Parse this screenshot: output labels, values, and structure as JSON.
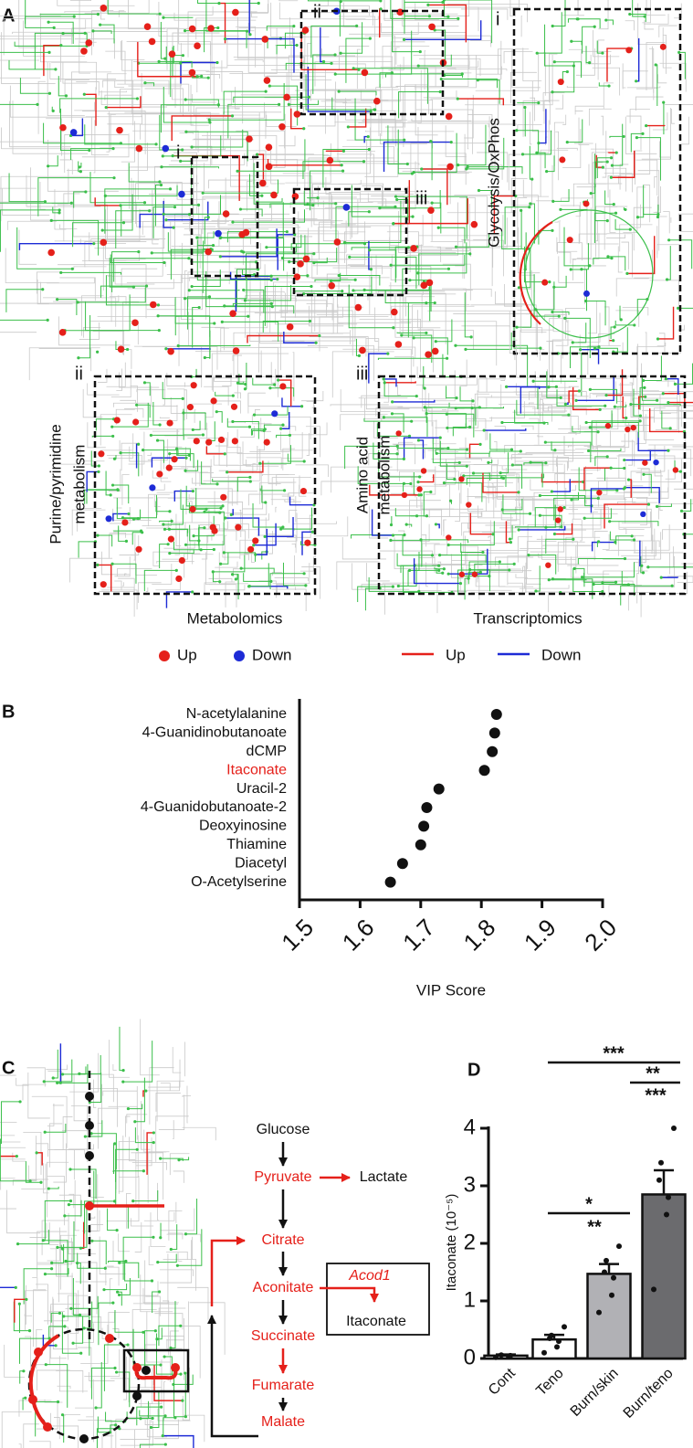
{
  "panels": {
    "a": "A",
    "b": "B",
    "c": "C",
    "d": "D"
  },
  "panel_a": {
    "insets": [
      "i",
      "ii",
      "iii"
    ],
    "inset_titles": [
      [
        "Glycolysis/OxPhos"
      ],
      [
        "Purine/pyrimidine",
        "metabolism"
      ],
      [
        "Amino acid",
        "metabolism"
      ]
    ],
    "columns": [
      "Metabolomics",
      "Transcriptomics"
    ],
    "legend": [
      {
        "name": "Up",
        "color": "#e5201a",
        "shape": "dot"
      },
      {
        "name": "Down",
        "color": "#1d2bd6",
        "shape": "dot"
      },
      {
        "name": "Up",
        "color": "#e5201a",
        "shape": "line"
      },
      {
        "name": "Down",
        "color": "#1d2bd6",
        "shape": "line"
      }
    ]
  },
  "chart_data": [
    {
      "type": "dot",
      "categories": [
        "N-acetylalanine",
        "4-Guanidinobutanoate",
        "dCMP",
        "Itaconate",
        "Uracil-2",
        "4-Guanidobutanoate-2",
        "Deoxyinosine",
        "Thiamine",
        "Diacetyl",
        "O-Acetylserine"
      ],
      "category_colors": [
        "#111111",
        "#111111",
        "#111111",
        "#e5201a",
        "#111111",
        "#111111",
        "#111111",
        "#111111",
        "#111111",
        "#111111"
      ],
      "values": [
        1.825,
        1.822,
        1.818,
        1.805,
        1.73,
        1.71,
        1.705,
        1.7,
        1.67,
        1.65
      ],
      "color": "#111111",
      "xlabel": "VIP Score",
      "xlim": [
        1.5,
        2.0
      ],
      "xticks": [
        1.5,
        1.6,
        1.7,
        1.8,
        1.9,
        {
          "value": 2.0,
          "label": "2.0"
        }
      ]
    },
    {
      "type": "bar",
      "categories": [
        "Cont",
        "Teno",
        "Burn/skin",
        "Burn/teno"
      ],
      "values": [
        0.05,
        0.33,
        1.47,
        2.85
      ],
      "errors": [
        0.02,
        0.08,
        0.17,
        0.42
      ],
      "points": [
        [
          0.02,
          0.04,
          0.05,
          0.06
        ],
        [
          0.1,
          0.2,
          0.3,
          0.35,
          0.4,
          0.55
        ],
        [
          0.8,
          1.1,
          1.4,
          1.5,
          1.7,
          1.95
        ],
        [
          1.2,
          2.5,
          2.8,
          3.1,
          3.4,
          4.0
        ]
      ],
      "colors": [
        "#ffffff",
        "#ffffff",
        "#b1b1b5",
        "#6b6b6e"
      ],
      "ylabel": "Itaconate (10⁻⁵)",
      "ylim": [
        0,
        4
      ],
      "yticks": [
        0,
        1,
        2,
        3,
        4
      ],
      "annotations": [
        "***",
        "**",
        "***",
        "*",
        "**"
      ]
    }
  ],
  "panel_c": {
    "pathway": [
      "Glucose",
      "Pyruvate",
      "Lactate",
      "Citrate",
      "Aconitate",
      "Acod1",
      "Itaconate",
      "Succinate",
      "Fumarate",
      "Malate"
    ]
  }
}
